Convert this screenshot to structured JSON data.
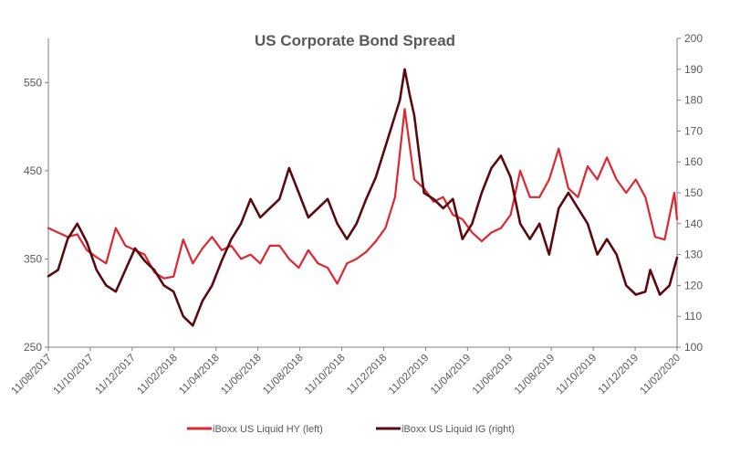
{
  "chart_data": {
    "type": "line",
    "title": "US Corporate Bond Spread",
    "xlabel": "",
    "ylabel_left": "",
    "ylabel_right": "",
    "ylim_left": [
      250,
      600
    ],
    "ylim_right": [
      100,
      200
    ],
    "yticks_left": [
      250,
      350,
      450,
      550
    ],
    "yticks_right": [
      100,
      110,
      120,
      130,
      140,
      150,
      160,
      170,
      180,
      190,
      200
    ],
    "x_range": [
      "2017-08-11",
      "2020-02-11"
    ],
    "x_tick_labels": [
      "11/08/2017",
      "11/10/2017",
      "11/12/2017",
      "11/02/2018",
      "11/04/2018",
      "11/06/2018",
      "11/08/2018",
      "11/10/2018",
      "11/12/2018",
      "11/02/2019",
      "11/04/2019",
      "11/06/2019",
      "11/08/2019",
      "11/10/2019",
      "11/12/2019",
      "11/02/2020"
    ],
    "grid": false,
    "legend_position": "bottom",
    "colors": {
      "hy": "#e0262f",
      "ig": "#5a0a0f",
      "axis": "#7f7f7f",
      "text": "#595959"
    },
    "series": [
      {
        "name": "iBoxx US Liquid HY (left)",
        "axis": "left",
        "color": "#e0262f",
        "x": [
          "2017-08-11",
          "2017-08-25",
          "2017-09-08",
          "2017-09-22",
          "2017-10-06",
          "2017-10-20",
          "2017-11-03",
          "2017-11-17",
          "2017-12-01",
          "2017-12-15",
          "2017-12-29",
          "2018-01-12",
          "2018-01-26",
          "2018-02-09",
          "2018-02-23",
          "2018-03-09",
          "2018-03-23",
          "2018-04-06",
          "2018-04-20",
          "2018-05-04",
          "2018-05-18",
          "2018-06-01",
          "2018-06-15",
          "2018-06-29",
          "2018-07-13",
          "2018-07-27",
          "2018-08-10",
          "2018-08-24",
          "2018-09-07",
          "2018-09-21",
          "2018-10-05",
          "2018-10-19",
          "2018-11-02",
          "2018-11-16",
          "2018-11-30",
          "2018-12-14",
          "2018-12-28",
          "2019-01-04",
          "2019-01-11",
          "2019-01-25",
          "2019-02-08",
          "2019-02-22",
          "2019-03-08",
          "2019-03-22",
          "2019-04-05",
          "2019-04-19",
          "2019-05-03",
          "2019-05-17",
          "2019-05-31",
          "2019-06-14",
          "2019-06-28",
          "2019-07-12",
          "2019-07-26",
          "2019-08-09",
          "2019-08-23",
          "2019-09-06",
          "2019-09-20",
          "2019-10-04",
          "2019-10-18",
          "2019-11-01",
          "2019-11-15",
          "2019-11-29",
          "2019-12-13",
          "2019-12-27",
          "2020-01-10",
          "2020-01-24",
          "2020-02-07",
          "2020-02-11"
        ],
        "values": [
          385,
          380,
          375,
          378,
          360,
          352,
          345,
          385,
          365,
          360,
          355,
          335,
          328,
          330,
          372,
          345,
          362,
          375,
          360,
          365,
          350,
          355,
          345,
          365,
          365,
          350,
          340,
          360,
          345,
          340,
          322,
          345,
          350,
          358,
          370,
          385,
          420,
          470,
          520,
          440,
          430,
          415,
          420,
          400,
          395,
          380,
          370,
          380,
          385,
          400,
          450,
          420,
          420,
          440,
          475,
          430,
          420,
          455,
          440,
          465,
          440,
          425,
          440,
          420,
          375,
          372,
          425,
          395
        ]
      },
      {
        "name": "iBoxx US Liquid IG (right)",
        "axis": "right",
        "color": "#5a0a0f",
        "x": [
          "2017-08-11",
          "2017-08-25",
          "2017-09-08",
          "2017-09-22",
          "2017-10-06",
          "2017-10-20",
          "2017-11-03",
          "2017-11-17",
          "2017-12-01",
          "2017-12-15",
          "2017-12-29",
          "2018-01-12",
          "2018-01-26",
          "2018-02-09",
          "2018-02-23",
          "2018-03-09",
          "2018-03-23",
          "2018-04-06",
          "2018-04-20",
          "2018-05-04",
          "2018-05-18",
          "2018-06-01",
          "2018-06-15",
          "2018-06-29",
          "2018-07-13",
          "2018-07-27",
          "2018-08-10",
          "2018-08-24",
          "2018-09-07",
          "2018-09-21",
          "2018-10-05",
          "2018-10-19",
          "2018-11-02",
          "2018-11-16",
          "2018-11-30",
          "2018-12-14",
          "2018-12-28",
          "2019-01-04",
          "2019-01-11",
          "2019-01-18",
          "2019-01-25",
          "2019-02-08",
          "2019-02-22",
          "2019-03-08",
          "2019-03-22",
          "2019-04-05",
          "2019-04-19",
          "2019-05-03",
          "2019-05-17",
          "2019-05-31",
          "2019-06-14",
          "2019-06-28",
          "2019-07-12",
          "2019-07-26",
          "2019-08-09",
          "2019-08-23",
          "2019-09-06",
          "2019-09-20",
          "2019-10-04",
          "2019-10-18",
          "2019-11-01",
          "2019-11-15",
          "2019-11-29",
          "2019-12-13",
          "2019-12-27",
          "2020-01-03",
          "2020-01-17",
          "2020-01-31",
          "2020-02-11"
        ],
        "values": [
          123,
          125,
          135,
          140,
          134,
          125,
          120,
          118,
          125,
          132,
          128,
          125,
          120,
          118,
          110,
          107,
          115,
          120,
          128,
          135,
          140,
          148,
          142,
          145,
          148,
          158,
          150,
          142,
          145,
          148,
          140,
          135,
          140,
          148,
          155,
          165,
          175,
          180,
          190,
          182,
          175,
          150,
          148,
          145,
          148,
          135,
          140,
          150,
          158,
          162,
          155,
          140,
          135,
          140,
          130,
          145,
          150,
          145,
          140,
          130,
          135,
          130,
          120,
          117,
          118,
          125,
          117,
          120,
          129
        ]
      }
    ]
  }
}
